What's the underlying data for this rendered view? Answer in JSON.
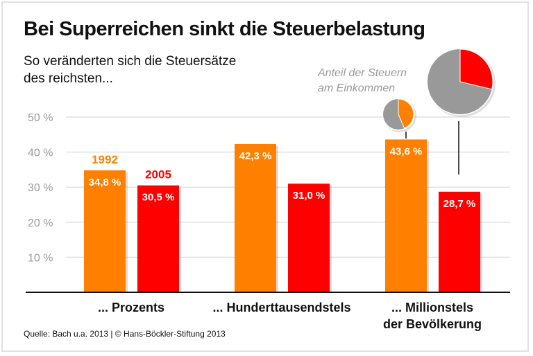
{
  "chart_data": {
    "type": "bar",
    "title": "Bei Superreichen sinkt die Steuerbelastung",
    "subtitle": "So veränderten sich die Steuersätze\ndes reichsten...",
    "categories": [
      "... Prozents",
      "... Hunderttausendstels",
      "... Millionstels\nder Bevölkerung"
    ],
    "series": [
      {
        "name": "1992",
        "color": "#ff8000",
        "values": [
          34.8,
          42.3,
          43.6
        ],
        "labels": [
          "34,8 %",
          "42,3 %",
          "43,6 %"
        ]
      },
      {
        "name": "2005",
        "color": "#ff0000",
        "values": [
          30.5,
          31.0,
          28.7
        ],
        "labels": [
          "30,5 %",
          "31,0 %",
          "28,7 %"
        ]
      }
    ],
    "ylim": [
      0,
      50
    ],
    "yticks": [
      10,
      20,
      30,
      40,
      50
    ],
    "ytick_labels": [
      "10 %",
      "20 %",
      "30 %",
      "40 %",
      "50 %"
    ],
    "grid": true,
    "pie_annotation": {
      "label": "Anteil der Steuern\nam Einkommen",
      "pies": [
        {
          "category": "... Millionstels der Bevölkerung",
          "series": "1992",
          "share": 43.6,
          "color": "#ff8000",
          "rest_color": "#999999"
        },
        {
          "category": "... Millionstels der Bevölkerung",
          "series": "2005",
          "share": 28.7,
          "color": "#ff0000",
          "rest_color": "#999999"
        }
      ]
    }
  },
  "source": "Quelle: Bach u.a. 2013 | © Hans-Böckler-Stiftung 2013"
}
